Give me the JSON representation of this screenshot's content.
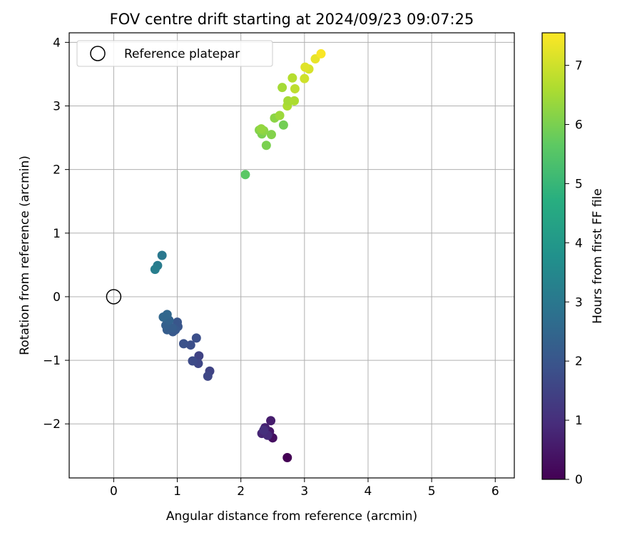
{
  "chart_data": {
    "type": "scatter",
    "title": "FOV centre drift starting at 2024/09/23 09:07:25",
    "xlabel": "Angular distance from reference (arcmin)",
    "ylabel": "Rotation from reference (arcmin)",
    "xlim": [
      -0.7,
      6.3
    ],
    "ylim": [
      -2.85,
      4.15
    ],
    "xticks": [
      0,
      1,
      2,
      3,
      4,
      5,
      6
    ],
    "yticks": [
      -2,
      -1,
      0,
      1,
      2,
      3,
      4
    ],
    "xtick_labels": [
      "0",
      "1",
      "2",
      "3",
      "4",
      "5",
      "6"
    ],
    "ytick_labels": [
      "−2",
      "−1",
      "0",
      "1",
      "2",
      "3",
      "4"
    ],
    "grid": true,
    "legend": {
      "position": "top-left",
      "entries": [
        "Reference platepar"
      ]
    },
    "reference_point": {
      "x": 0,
      "y": 0
    },
    "colorbar": {
      "label": "Hours from first FF file",
      "range": [
        0,
        7.55
      ],
      "ticks": [
        0,
        1,
        2,
        3,
        4,
        5,
        6,
        7
      ],
      "tick_labels": [
        "0",
        "1",
        "2",
        "3",
        "4",
        "5",
        "6",
        "7"
      ],
      "colormap": "viridis"
    },
    "points": [
      {
        "x": 2.73,
        "y": -2.53,
        "h": 0.0
      },
      {
        "x": 2.5,
        "y": -2.22,
        "h": 0.3
      },
      {
        "x": 2.47,
        "y": -1.95,
        "h": 0.6
      },
      {
        "x": 2.45,
        "y": -2.12,
        "h": 0.5
      },
      {
        "x": 2.38,
        "y": -2.06,
        "h": 0.7
      },
      {
        "x": 2.33,
        "y": -2.15,
        "h": 0.8
      },
      {
        "x": 2.42,
        "y": -2.18,
        "h": 0.9
      },
      {
        "x": 2.36,
        "y": -2.1,
        "h": 1.0
      },
      {
        "x": 1.51,
        "y": -1.17,
        "h": 1.5
      },
      {
        "x": 1.48,
        "y": -1.25,
        "h": 1.6
      },
      {
        "x": 1.34,
        "y": -0.93,
        "h": 1.5
      },
      {
        "x": 1.33,
        "y": -1.05,
        "h": 1.6
      },
      {
        "x": 1.24,
        "y": -1.01,
        "h": 1.7
      },
      {
        "x": 1.3,
        "y": -0.65,
        "h": 1.8
      },
      {
        "x": 1.21,
        "y": -0.76,
        "h": 1.8
      },
      {
        "x": 1.1,
        "y": -0.74,
        "h": 1.9
      },
      {
        "x": 1.0,
        "y": -0.4,
        "h": 2.0
      },
      {
        "x": 1.01,
        "y": -0.47,
        "h": 2.0
      },
      {
        "x": 0.97,
        "y": -0.52,
        "h": 2.1
      },
      {
        "x": 0.93,
        "y": -0.55,
        "h": 2.1
      },
      {
        "x": 0.88,
        "y": -0.51,
        "h": 2.1
      },
      {
        "x": 0.84,
        "y": -0.52,
        "h": 2.2
      },
      {
        "x": 0.92,
        "y": -0.49,
        "h": 2.2
      },
      {
        "x": 0.82,
        "y": -0.45,
        "h": 2.3
      },
      {
        "x": 0.87,
        "y": -0.37,
        "h": 2.4
      },
      {
        "x": 0.78,
        "y": -0.32,
        "h": 2.5
      },
      {
        "x": 0.84,
        "y": -0.28,
        "h": 2.5
      },
      {
        "x": 0.76,
        "y": 0.65,
        "h": 3.0
      },
      {
        "x": 0.69,
        "y": 0.49,
        "h": 3.1
      },
      {
        "x": 0.65,
        "y": 0.43,
        "h": 3.2
      },
      {
        "x": 2.07,
        "y": 1.92,
        "h": 5.6
      },
      {
        "x": 2.4,
        "y": 2.38,
        "h": 6.0
      },
      {
        "x": 2.48,
        "y": 2.55,
        "h": 6.1
      },
      {
        "x": 2.33,
        "y": 2.56,
        "h": 6.0
      },
      {
        "x": 2.29,
        "y": 2.62,
        "h": 6.1
      },
      {
        "x": 2.36,
        "y": 2.61,
        "h": 6.2
      },
      {
        "x": 2.32,
        "y": 2.64,
        "h": 6.3
      },
      {
        "x": 2.67,
        "y": 2.7,
        "h": 5.9
      },
      {
        "x": 2.53,
        "y": 2.81,
        "h": 6.2
      },
      {
        "x": 2.61,
        "y": 2.85,
        "h": 6.4
      },
      {
        "x": 2.73,
        "y": 3.0,
        "h": 6.6
      },
      {
        "x": 2.74,
        "y": 3.08,
        "h": 6.5
      },
      {
        "x": 2.84,
        "y": 3.08,
        "h": 6.6
      },
      {
        "x": 2.85,
        "y": 3.27,
        "h": 6.8
      },
      {
        "x": 2.65,
        "y": 3.29,
        "h": 6.5
      },
      {
        "x": 2.81,
        "y": 3.44,
        "h": 6.7
      },
      {
        "x": 3.0,
        "y": 3.43,
        "h": 7.0
      },
      {
        "x": 3.07,
        "y": 3.58,
        "h": 7.1
      },
      {
        "x": 3.01,
        "y": 3.61,
        "h": 7.2
      },
      {
        "x": 3.17,
        "y": 3.74,
        "h": 7.3
      },
      {
        "x": 3.26,
        "y": 3.82,
        "h": 7.5
      }
    ]
  }
}
